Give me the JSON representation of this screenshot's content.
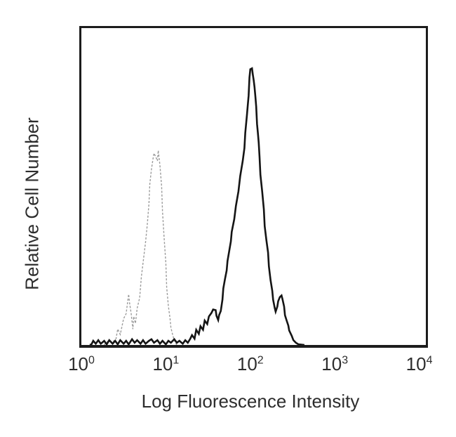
{
  "figure": {
    "ylabel": "Relative Cell Number",
    "xlabel": "Log Fluorescence Intensity"
  },
  "chart_data": {
    "type": "line",
    "subtype": "flow-cytometry-overlay-histogram",
    "title": "",
    "xlabel": "Log Fluorescence Intensity",
    "ylabel": "Relative Cell Number",
    "x_scale": "log10",
    "xlim_exponents": [
      0,
      4
    ],
    "x_tick_labels": [
      "10^0",
      "10^1",
      "10^2",
      "10^3",
      "10^4"
    ],
    "y_ticks": [],
    "ylim_percent": [
      0,
      100
    ],
    "grid": false,
    "legend_position": "none",
    "series": [
      {
        "name": "gray-dashed-curve",
        "style": "dashed",
        "color": "#9c9c9c",
        "stroke_width": 1.4,
        "peak_log10_x": 0.91,
        "peak_height_pct": 61.4,
        "points": [
          [
            0.27,
            0
          ],
          [
            0.28,
            0.4
          ],
          [
            0.32,
            1.3
          ],
          [
            0.37,
            0.9
          ],
          [
            0.41,
            2.0
          ],
          [
            0.43,
            5.0
          ],
          [
            0.46,
            3.3
          ],
          [
            0.5,
            8.3
          ],
          [
            0.53,
            9.9
          ],
          [
            0.56,
            16.0
          ],
          [
            0.57,
            13.4
          ],
          [
            0.59,
            9.9
          ],
          [
            0.61,
            5.0
          ],
          [
            0.62,
            9.0
          ],
          [
            0.64,
            6.8
          ],
          [
            0.66,
            11.6
          ],
          [
            0.69,
            14.9
          ],
          [
            0.71,
            21.5
          ],
          [
            0.74,
            28.1
          ],
          [
            0.76,
            32.5
          ],
          [
            0.78,
            37.9
          ],
          [
            0.8,
            44.5
          ],
          [
            0.81,
            50.7
          ],
          [
            0.83,
            55.5
          ],
          [
            0.85,
            59.0
          ],
          [
            0.86,
            60.5
          ],
          [
            0.88,
            59.4
          ],
          [
            0.9,
            58.1
          ],
          [
            0.91,
            61.4
          ],
          [
            0.93,
            56.6
          ],
          [
            0.95,
            50.0
          ],
          [
            0.96,
            42.3
          ],
          [
            0.98,
            33.6
          ],
          [
            1.0,
            25.9
          ],
          [
            1.01,
            18.2
          ],
          [
            1.03,
            12.3
          ],
          [
            1.05,
            8.3
          ],
          [
            1.06,
            5.5
          ],
          [
            1.08,
            3.3
          ],
          [
            1.1,
            1.5
          ],
          [
            1.12,
            0.4
          ],
          [
            1.13,
            0
          ]
        ]
      },
      {
        "name": "black-solid-curve",
        "style": "solid",
        "color": "#141414",
        "stroke_width": 2.6,
        "peak_log10_x": 2.01,
        "peak_height_pct": 87.3,
        "points": [
          [
            0.1,
            0
          ],
          [
            0.12,
            0.2
          ],
          [
            0.14,
            1.3
          ],
          [
            0.17,
            0.4
          ],
          [
            0.2,
            1.5
          ],
          [
            0.23,
            0.4
          ],
          [
            0.27,
            1.3
          ],
          [
            0.3,
            0.2
          ],
          [
            0.33,
            1.5
          ],
          [
            0.37,
            0.4
          ],
          [
            0.4,
            1.3
          ],
          [
            0.43,
            0.2
          ],
          [
            0.46,
            1.5
          ],
          [
            0.5,
            0.4
          ],
          [
            0.53,
            1.3
          ],
          [
            0.56,
            0.2
          ],
          [
            0.6,
            1.8
          ],
          [
            0.63,
            0.7
          ],
          [
            0.66,
            1.5
          ],
          [
            0.7,
            0.4
          ],
          [
            0.73,
            1.5
          ],
          [
            0.76,
            0.4
          ],
          [
            0.8,
            1.3
          ],
          [
            0.83,
            1.8
          ],
          [
            0.86,
            0.7
          ],
          [
            0.9,
            1.5
          ],
          [
            0.93,
            0.4
          ],
          [
            0.96,
            1.3
          ],
          [
            1.0,
            0.2
          ],
          [
            1.03,
            1.3
          ],
          [
            1.06,
            0.7
          ],
          [
            1.1,
            1.8
          ],
          [
            1.13,
            0.7
          ],
          [
            1.16,
            1.3
          ],
          [
            1.2,
            0.4
          ],
          [
            1.23,
            1.5
          ],
          [
            1.26,
            0.7
          ],
          [
            1.29,
            2.0
          ],
          [
            1.31,
            3.1
          ],
          [
            1.34,
            2.0
          ],
          [
            1.36,
            4.8
          ],
          [
            1.39,
            3.5
          ],
          [
            1.41,
            5.9
          ],
          [
            1.44,
            4.8
          ],
          [
            1.46,
            7.7
          ],
          [
            1.49,
            6.6
          ],
          [
            1.51,
            9.0
          ],
          [
            1.54,
            10.1
          ],
          [
            1.56,
            11.2
          ],
          [
            1.59,
            11.0
          ],
          [
            1.6,
            9.2
          ],
          [
            1.62,
            7.9
          ],
          [
            1.63,
            9.4
          ],
          [
            1.65,
            10.7
          ],
          [
            1.67,
            14.3
          ],
          [
            1.68,
            17.8
          ],
          [
            1.7,
            20.8
          ],
          [
            1.72,
            23.5
          ],
          [
            1.73,
            26.5
          ],
          [
            1.75,
            29.6
          ],
          [
            1.77,
            32.7
          ],
          [
            1.78,
            35.7
          ],
          [
            1.81,
            39.7
          ],
          [
            1.83,
            43.9
          ],
          [
            1.86,
            48.5
          ],
          [
            1.88,
            53.3
          ],
          [
            1.91,
            58.1
          ],
          [
            1.93,
            62.1
          ],
          [
            1.94,
            66.9
          ],
          [
            1.96,
            72.6
          ],
          [
            1.97,
            75.7
          ],
          [
            1.98,
            78.7
          ],
          [
            1.985,
            81.6
          ],
          [
            1.99,
            84.4
          ],
          [
            2.0,
            87.0
          ],
          [
            2.02,
            87.3
          ],
          [
            2.03,
            85.3
          ],
          [
            2.04,
            83.6
          ],
          [
            2.05,
            81.4
          ],
          [
            2.06,
            78.5
          ],
          [
            2.07,
            75.2
          ],
          [
            2.075,
            72.4
          ],
          [
            2.08,
            69.7
          ],
          [
            2.09,
            66.9
          ],
          [
            2.1,
            63.8
          ],
          [
            2.11,
            59.2
          ],
          [
            2.12,
            53.7
          ],
          [
            2.14,
            48.5
          ],
          [
            2.16,
            42.8
          ],
          [
            2.17,
            37.5
          ],
          [
            2.19,
            33.1
          ],
          [
            2.21,
            29.2
          ],
          [
            2.22,
            24.8
          ],
          [
            2.24,
            20.4
          ],
          [
            2.26,
            17.1
          ],
          [
            2.27,
            14.3
          ],
          [
            2.29,
            11.6
          ],
          [
            2.3,
            10.5
          ],
          [
            2.32,
            12.1
          ],
          [
            2.33,
            13.8
          ],
          [
            2.35,
            15.1
          ],
          [
            2.37,
            15.6
          ],
          [
            2.38,
            14.5
          ],
          [
            2.4,
            12.1
          ],
          [
            2.41,
            9.4
          ],
          [
            2.43,
            7.7
          ],
          [
            2.45,
            6.1
          ],
          [
            2.46,
            4.6
          ],
          [
            2.49,
            2.9
          ],
          [
            2.51,
            1.5
          ],
          [
            2.54,
            0.7
          ],
          [
            2.57,
            0.2
          ],
          [
            2.64,
            0
          ]
        ]
      }
    ]
  },
  "layout_colors": {
    "background": "#ffffff",
    "axis_border": "#1c1c1c",
    "text": "#2d2d2d"
  }
}
